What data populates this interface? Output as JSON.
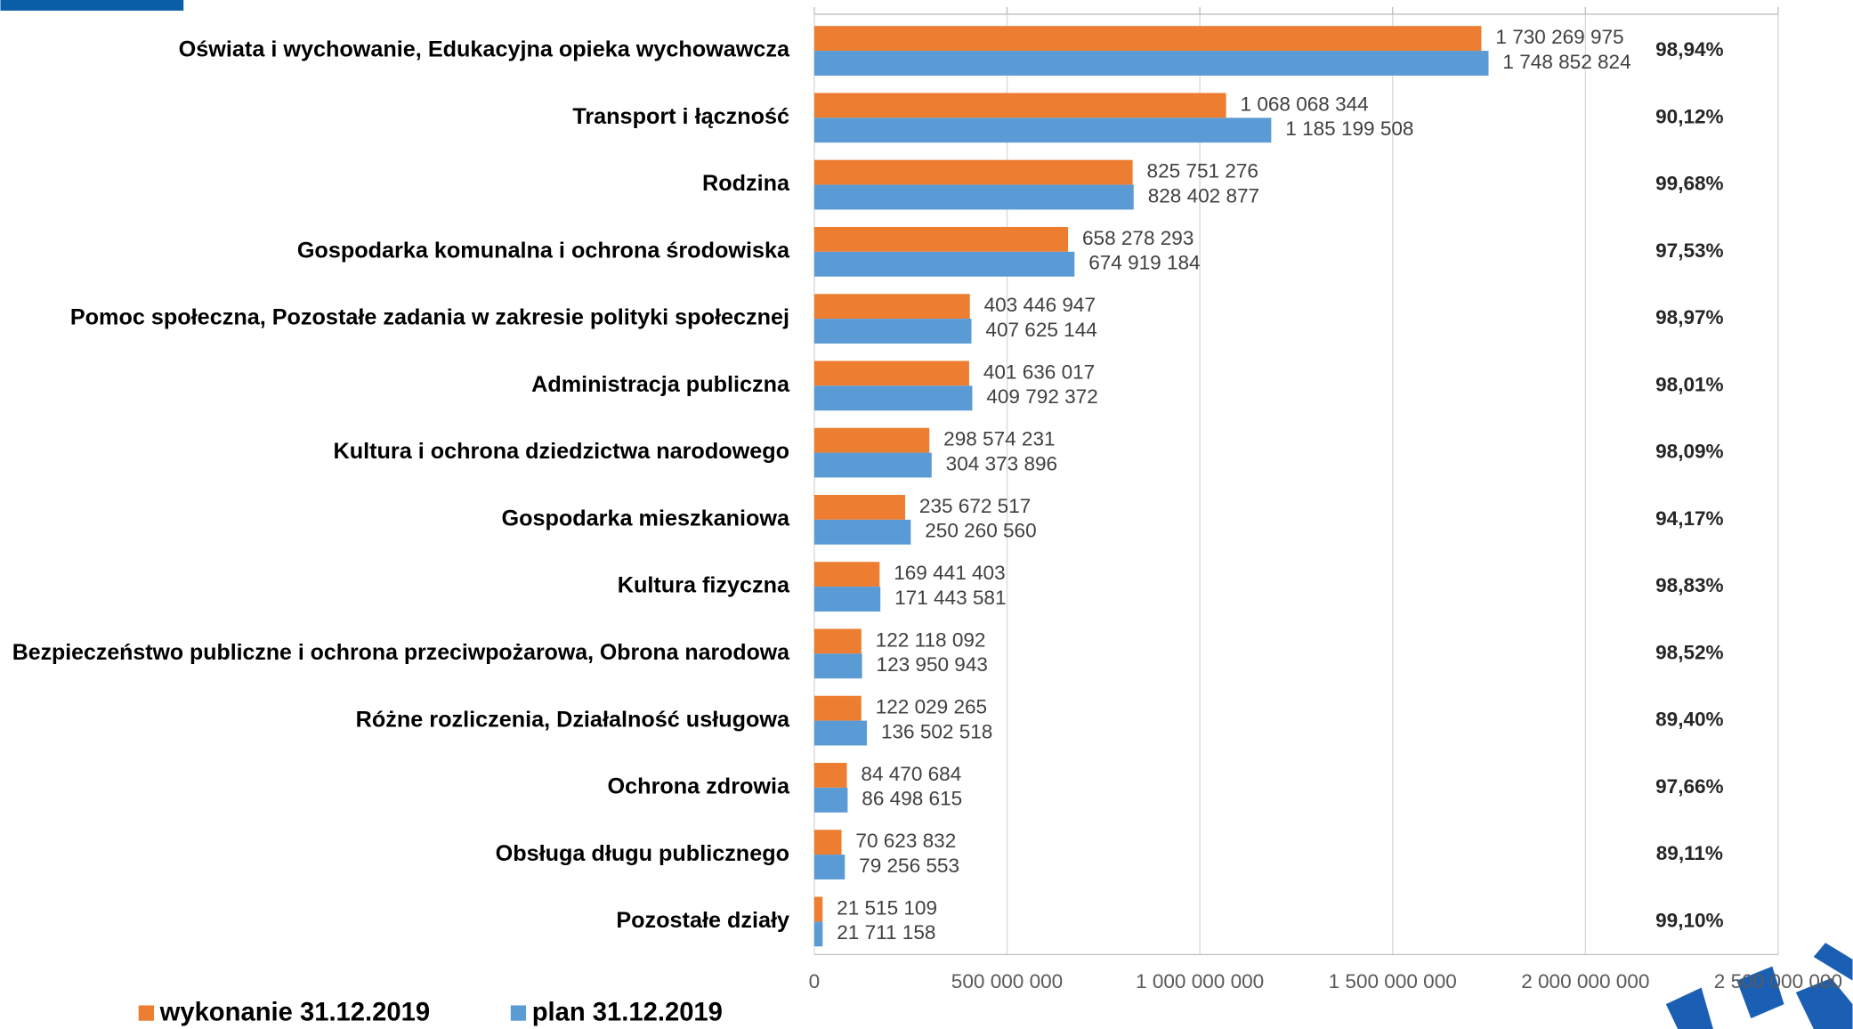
{
  "chart_data": {
    "type": "bar",
    "orientation": "horizontal",
    "categories": [
      "Oświata i wychowanie, Edukacyjna opieka wychowawcza",
      "Transport i łączność",
      "Rodzina",
      "Gospodarka komunalna i ochrona środowiska",
      "Pomoc społeczna, Pozostałe zadania w zakresie polityki społecznej",
      "Administracja publiczna",
      "Kultura i ochrona dziedzictwa narodowego",
      "Gospodarka mieszkaniowa",
      "Kultura fizyczna",
      "Bezpieczeństwo publiczne i ochrona przeciwpożarowa, Obrona narodowa",
      "Różne rozliczenia, Działalność usługowa",
      "Ochrona zdrowia",
      "Obsługa długu publicznego",
      "Pozostałe działy"
    ],
    "series": [
      {
        "name": "wykonanie 31.12.2019",
        "color": "#ed7d31",
        "values": [
          1730269975,
          1068068344,
          825751276,
          658278293,
          403446947,
          401636017,
          298574231,
          235672517,
          169441403,
          122118092,
          122029265,
          84470684,
          70623832,
          21515109
        ],
        "value_labels": [
          "1 730 269 975",
          "1 068 068 344",
          "825 751 276",
          "658 278 293",
          "403 446 947",
          "401 636 017",
          "298 574 231",
          "235 672 517",
          "169 441 403",
          "122 118 092",
          "122 029 265",
          "84 470 684",
          "70 623 832",
          "21 515 109"
        ]
      },
      {
        "name": "plan 31.12.2019",
        "color": "#5b9bd5",
        "values": [
          1748852824,
          1185199508,
          828402877,
          674919184,
          407625144,
          409792372,
          304373896,
          250260560,
          171443581,
          123950943,
          136502518,
          86498615,
          79256553,
          21711158
        ],
        "value_labels": [
          "1 748 852 824",
          "1 185 199 508",
          "828 402 877",
          "674 919 184",
          "407 625 144",
          "409 792 372",
          "304 373 896",
          "250 260 560",
          "171 443 581",
          "123 950 943",
          "136 502 518",
          "86 498 615",
          "79 256 553",
          "21 711 158"
        ]
      }
    ],
    "rate_labels": [
      "98,94%",
      "90,12%",
      "99,68%",
      "97,53%",
      "98,97%",
      "98,01%",
      "98,09%",
      "94,17%",
      "98,83%",
      "98,52%",
      "89,40%",
      "97,66%",
      "89,11%",
      "99,10%"
    ],
    "xlim": [
      0,
      2500000000
    ],
    "xticks": [
      0,
      {
        "value": 500000000,
        "label": "500 000 000"
      },
      {
        "value": 1000000000,
        "label": "1 000 000 000"
      },
      {
        "value": 1500000000,
        "label": "1 500 000 000"
      },
      {
        "value": 2000000000,
        "label": "2 000 000 000"
      },
      {
        "value": 2500000000,
        "label": "2 500 000 000"
      }
    ],
    "grid": true,
    "legend": "bottom-left"
  }
}
